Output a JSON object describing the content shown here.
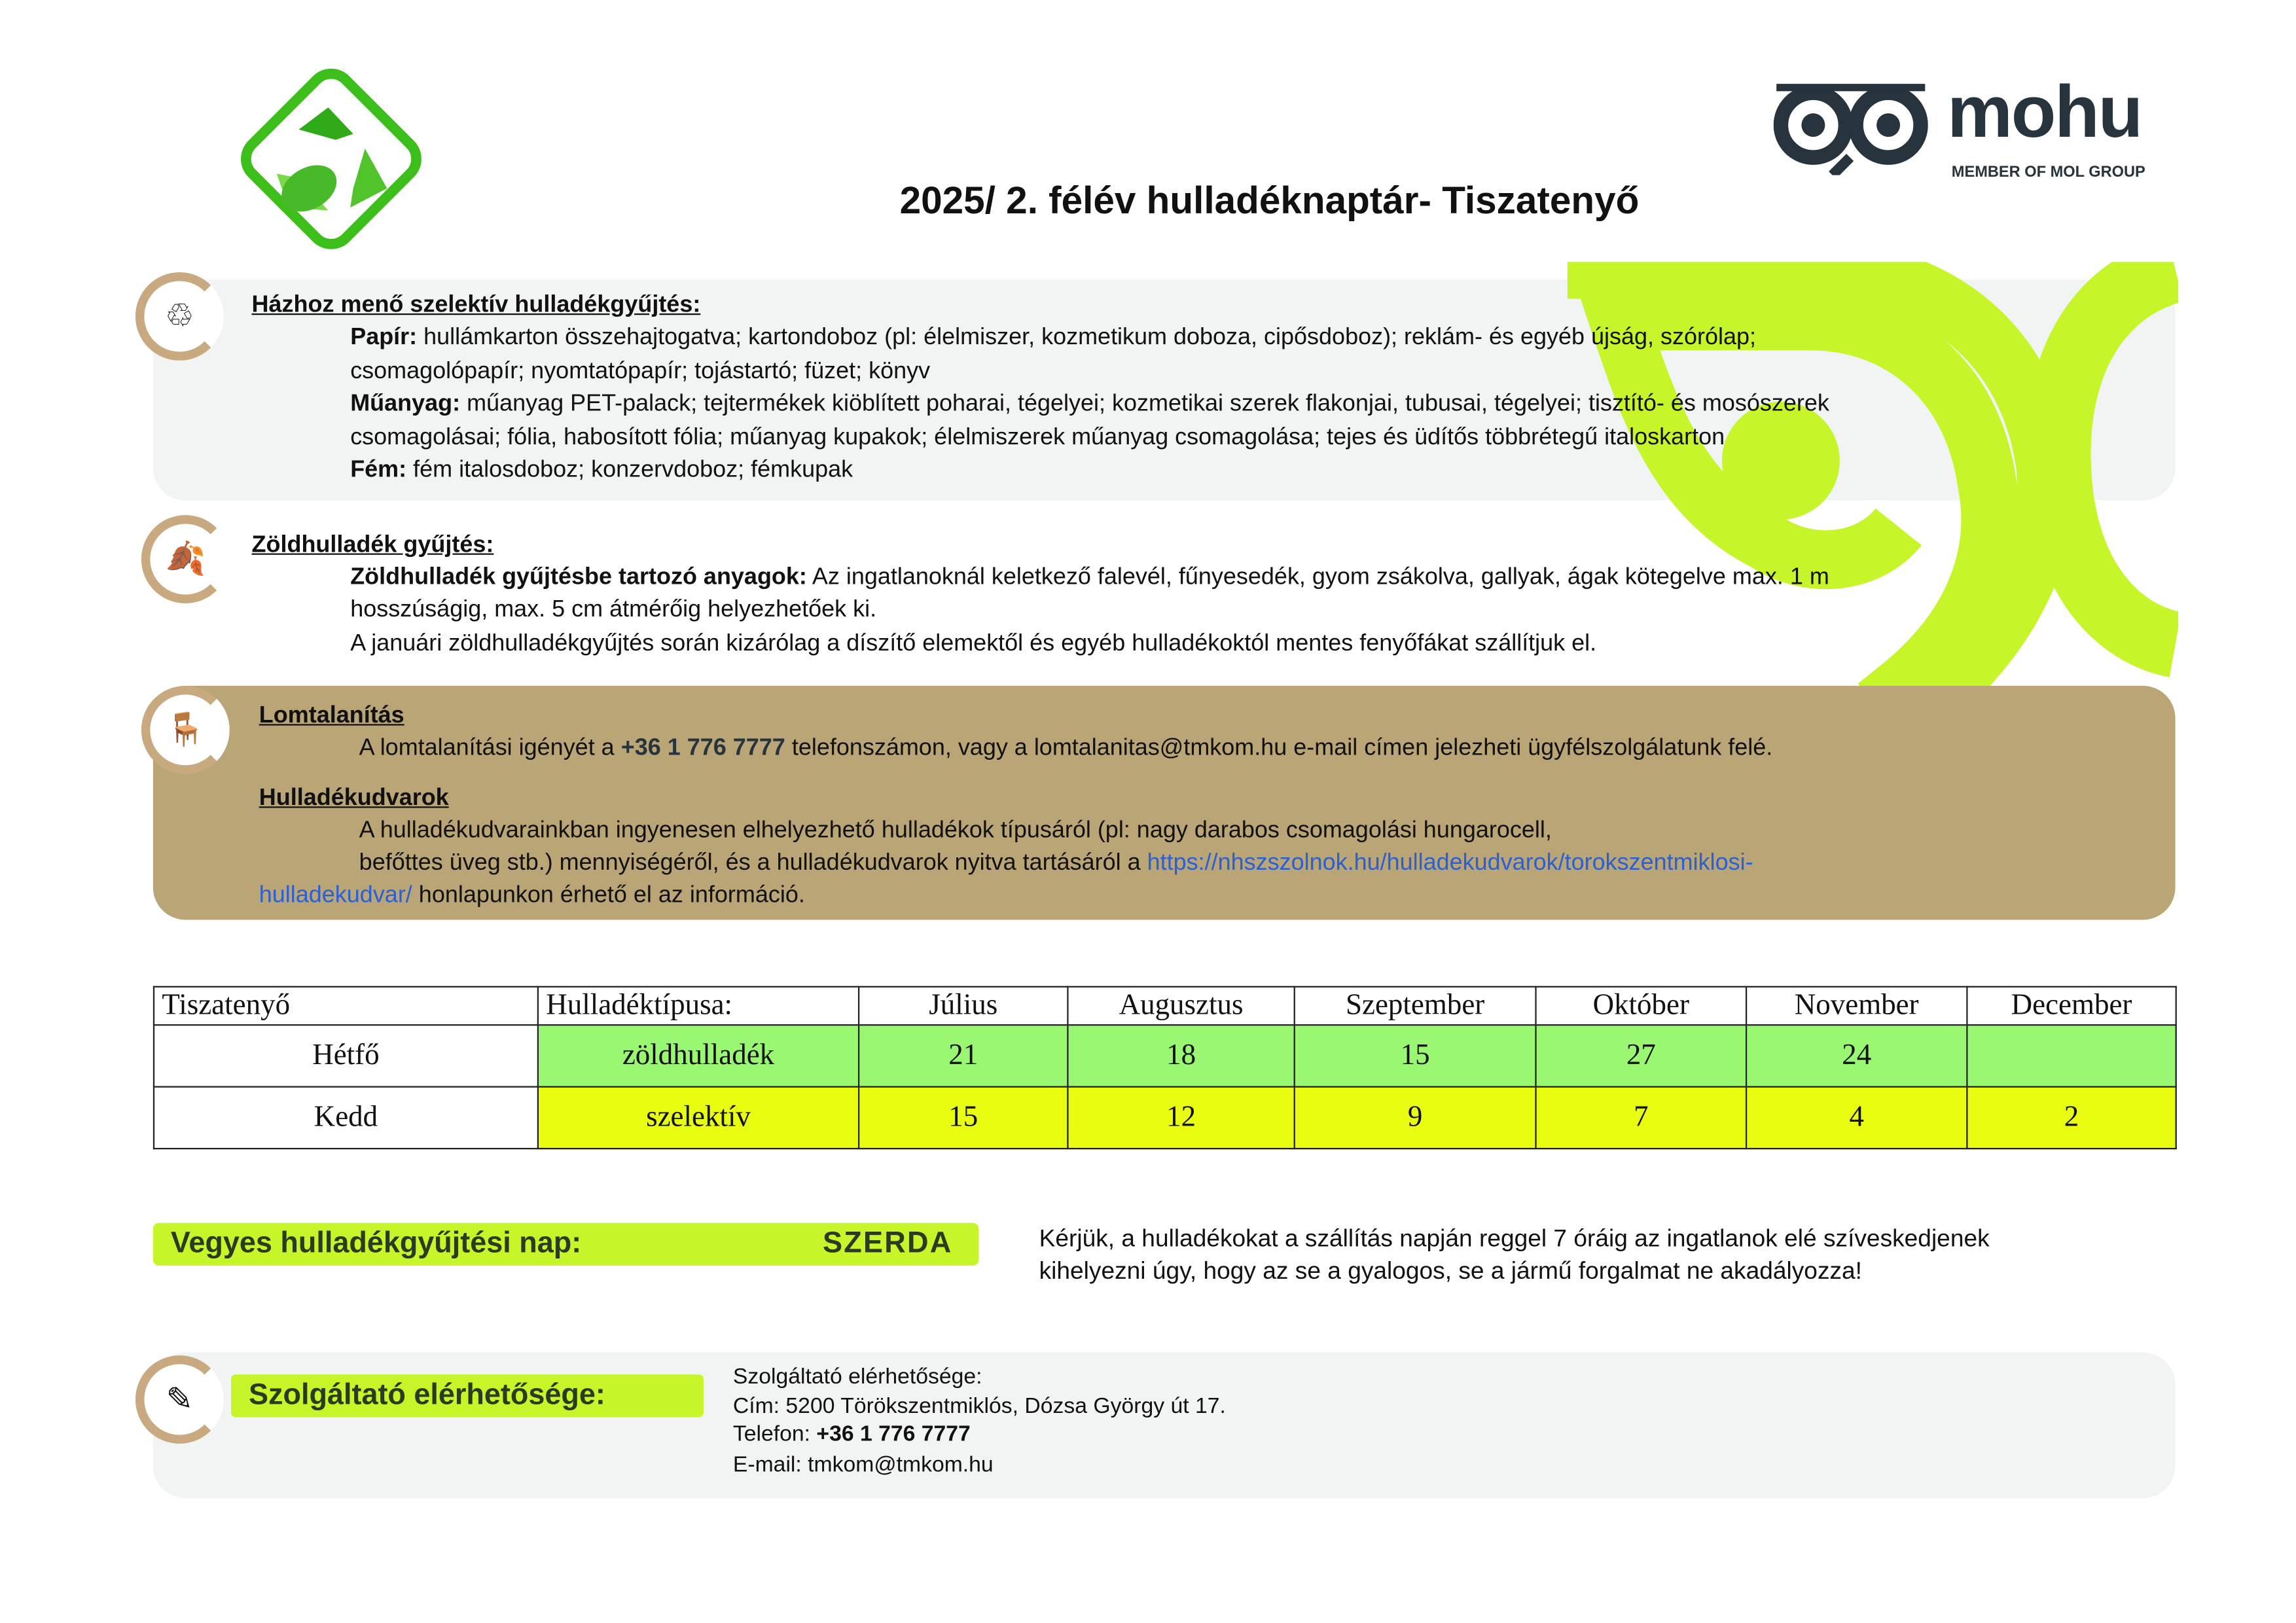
{
  "title": "2025/ 2.  félév hulladéknaptár- Tiszatenyő",
  "logo": {
    "brand": "mohu",
    "tagline": "MEMBER OF MOL GROUP"
  },
  "colors": {
    "lime": "#c6f52a",
    "tan": "#b9a575",
    "panel_gray": "#f1f4f3",
    "green_cell": "#99f771",
    "yellow_cell": "#e8fd0f",
    "logo_dark": "#27333d"
  },
  "selective": {
    "heading": "Házhoz menő szelektív hulladékgyűjtés:",
    "paper_label": "Papír:",
    "paper_1": " hullámkarton összehajtogatva; kartondoboz (pl: élelmiszer, kozmetikum doboza, cipősdoboz); reklám- és egyéb újság, szórólap;",
    "paper_2": "csomagolópapír; nyomtatópapír; tojástartó; füzet; könyv",
    "plastic_label": "Műanyag:",
    "plastic_1": " műanyag PET-palack; tejtermékek kiöblített poharai, tégelyei; kozmetikai szerek flakonjai, tubusai, tégelyei; tisztító- és mosószerek",
    "plastic_2": "csomagolásai; fólia, habosított fólia; műanyag kupakok; élelmiszerek műanyag csomagolása; tejes és üdítős többrétegű italoskarton",
    "metal_label": "Fém:",
    "metal_1": " fém italosdoboz; konzervdoboz; fémkupak"
  },
  "green": {
    "heading": "Zöldhulladék gyűjtés:",
    "label": "Zöldhulladék gyűjtésbe tartozó anyagok:",
    "line1": " Az ingatlanoknál keletkező falevél, fűnyesedék, gyom zsákolva, gallyak, ágak kötegelve max. 1 m",
    "line2": "hosszúságig, max. 5 cm átmérőig helyezhetőek ki.",
    "line3": "A januári zöldhulladékgyűjtés során kizárólag a díszítő elemektől és egyéb hulladékoktól mentes fenyőfákat szállítjuk el."
  },
  "bulky": {
    "heading": "Lomtalanítás",
    "pre": "A lomtalanítási igényét a ",
    "phone": "+36 1 776 7777",
    "post": "  telefonszámon, vagy a lomtalanitas@tmkom.hu e-mail címen jelezheti ügyfélszolgálatunk felé."
  },
  "yards": {
    "heading": "Hulladékudvarok",
    "line1": "A hulladékudvarainkban ingyenesen elhelyezhető hulladékok típusáról (pl: nagy darabos csomagolási hungarocell,",
    "line2": "befőttes üveg stb.) mennyiségéről, és a hulladékudvarok nyitva tartásáról a ",
    "link1": "https://nhszszolnok.hu/hulladekudvarok/torokszentmiklosi-",
    "link2": "hulladekudvar/",
    "line3": "  honlapunkon érhető el az információ."
  },
  "schedule": {
    "headers": [
      "Tiszatenyő",
      "Hulladéktípusa:",
      "Július",
      "Augusztus",
      "Szeptember",
      "Október",
      "November",
      "December"
    ],
    "rows": [
      {
        "day": "Hétfő",
        "type": "zöldhulladék",
        "dates": [
          "21",
          "18",
          "15",
          "27",
          "24",
          ""
        ]
      },
      {
        "day": "Kedd",
        "type": "szelektív",
        "dates": [
          "15",
          "12",
          "9",
          "7",
          "4",
          "2"
        ]
      }
    ]
  },
  "mixed": {
    "label": "Vegyes hulladékgyűjtési nap:",
    "day": "SZERDA"
  },
  "notice": {
    "line1": "Kérjük, a hulladékokat a szállítás napján reggel 7 óráig az ingatlanok elé szíveskedjenek",
    "line2": "kihelyezni úgy, hogy az se a gyalogos, se a jármű forgalmat ne akadályozza!"
  },
  "contact": {
    "label": "Szolgáltató elérhetősége:",
    "title": "Szolgáltató elérhetősége:",
    "address": "Cím: 5200 Törökszentmiklós, Dózsa György út 17.",
    "phone_label": "Telefon: ",
    "phone": "+36 1 776 7777",
    "email": "E-mail: tmkom@tmkom.hu"
  }
}
